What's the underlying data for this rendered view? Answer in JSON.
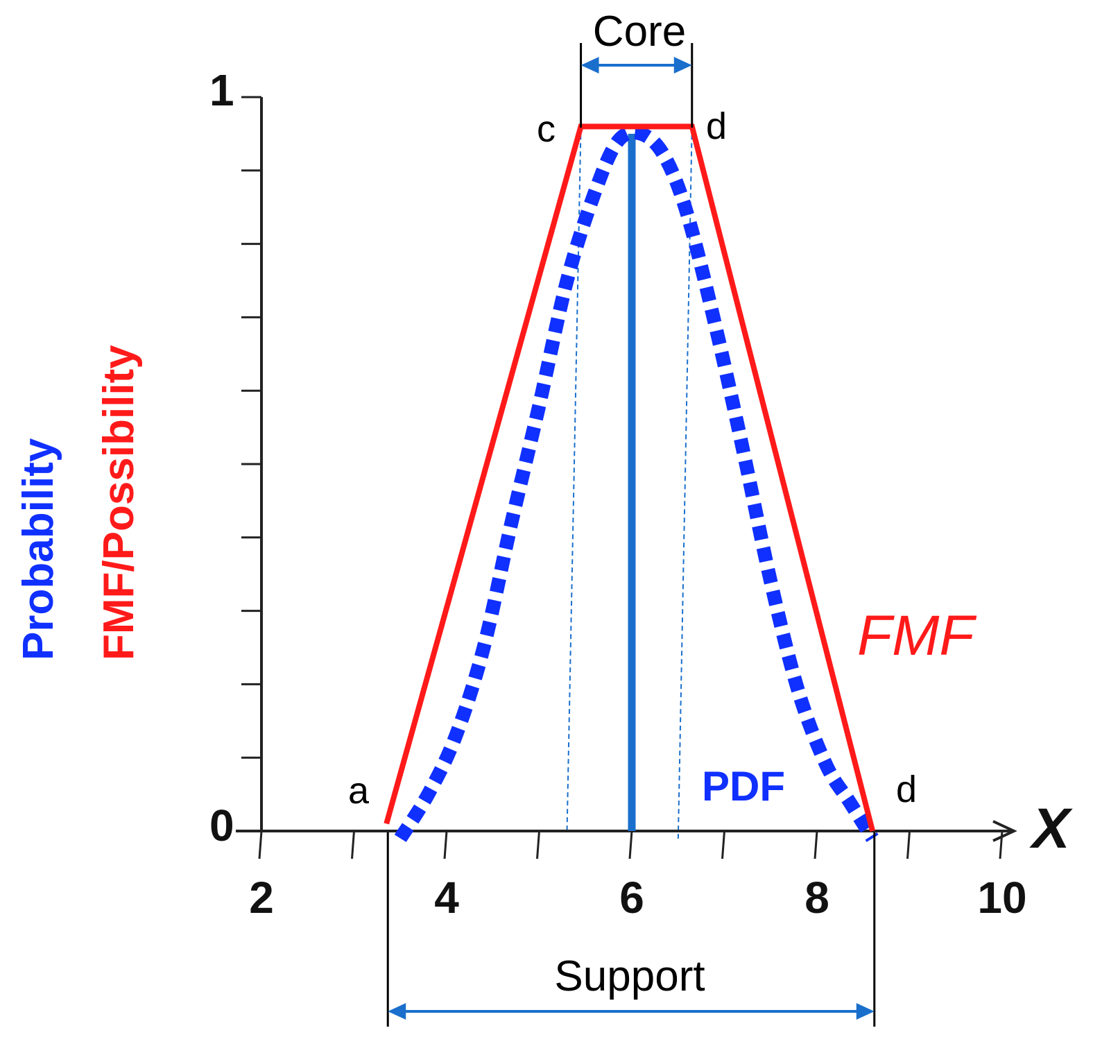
{
  "chart_data": {
    "type": "line",
    "x_axis": {
      "label": "X",
      "range": [
        2,
        10
      ],
      "ticks": [
        2,
        3,
        4,
        5,
        6,
        7,
        8,
        9,
        10
      ],
      "tick_labels": [
        "2",
        "4",
        "6",
        "8",
        "10"
      ]
    },
    "y_axis": {
      "range": [
        0,
        1
      ],
      "tick_labels": [
        "0",
        "1"
      ],
      "minor_ticks": 10
    },
    "ylabels": {
      "probability": "Probability",
      "fmf": "FMF/Possibility"
    },
    "series": [
      {
        "name": "FMF",
        "color": "#ff1a1a",
        "style": "solid",
        "points": [
          [
            3.35,
            0.01
          ],
          [
            5.45,
            0.96
          ],
          [
            6.65,
            0.96
          ],
          [
            8.6,
            0.0
          ]
        ]
      },
      {
        "name": "PDF",
        "color": "#1030ff",
        "style": "dotted",
        "points": [
          [
            3.5,
            -0.01
          ],
          [
            3.8,
            0.05
          ],
          [
            4.1,
            0.13
          ],
          [
            4.4,
            0.25
          ],
          [
            4.7,
            0.42
          ],
          [
            5.0,
            0.58
          ],
          [
            5.3,
            0.75
          ],
          [
            5.6,
            0.87
          ],
          [
            5.85,
            0.94
          ],
          [
            6.1,
            0.95
          ],
          [
            6.35,
            0.92
          ],
          [
            6.6,
            0.84
          ],
          [
            6.9,
            0.69
          ],
          [
            7.2,
            0.52
          ],
          [
            7.5,
            0.34
          ],
          [
            7.8,
            0.19
          ],
          [
            8.1,
            0.09
          ],
          [
            8.35,
            0.04
          ],
          [
            8.6,
            -0.01
          ]
        ]
      }
    ],
    "mode_line": {
      "x": 6.0,
      "y": 0.95,
      "color": "#1a6fcc"
    },
    "dashed_guides": [
      {
        "x_top": 5.45,
        "x_bottom": 5.3,
        "y_top": 0.96,
        "y_bottom": 0.0
      },
      {
        "x_top": 6.65,
        "x_bottom": 6.5,
        "y_top": 0.96,
        "y_bottom": -0.015
      }
    ],
    "point_labels": {
      "a": "a",
      "c": "c",
      "d_top": "d",
      "d_bottom": "d"
    },
    "series_labels": {
      "fmf": "FMF",
      "pdf": "PDF"
    },
    "annotations": {
      "core": {
        "label": "Core",
        "from": 5.45,
        "to": 6.65
      },
      "support": {
        "label": "Support",
        "from": 3.35,
        "to": 8.65
      }
    },
    "colors": {
      "fmf": "#ff1a1a",
      "pdf": "#1030ff",
      "annotation": "#1a6fcc",
      "axis": "#222222"
    }
  }
}
